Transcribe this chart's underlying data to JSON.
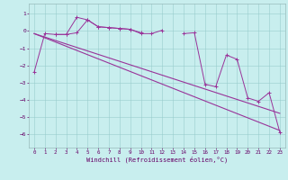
{
  "xlabel": "Windchill (Refroidissement éolien,°C)",
  "bg_color": "#c8eeee",
  "line_color": "#993399",
  "grid_color": "#99cccc",
  "xlim": [
    -0.5,
    23.5
  ],
  "ylim": [
    -6.8,
    1.6
  ],
  "yticks": [
    1,
    0,
    -1,
    -2,
    -3,
    -4,
    -5,
    -6
  ],
  "xticks": [
    0,
    1,
    2,
    3,
    4,
    5,
    6,
    7,
    8,
    9,
    10,
    11,
    12,
    13,
    14,
    15,
    16,
    17,
    18,
    19,
    20,
    21,
    22,
    23
  ],
  "hours": [
    0,
    1,
    2,
    3,
    4,
    5,
    6,
    7,
    8,
    9,
    10,
    11,
    12,
    13,
    14,
    15,
    16,
    17,
    18,
    19,
    20,
    21,
    22,
    23
  ],
  "line_jagged": [
    -2.4,
    -0.15,
    -0.2,
    -0.2,
    -0.1,
    0.65,
    0.25,
    0.2,
    0.15,
    0.1,
    -0.15,
    -0.15,
    0.05,
    null,
    -0.15,
    -0.1,
    -3.1,
    -3.25,
    -1.4,
    -1.65,
    -3.9,
    -4.1,
    -3.6,
    -5.9
  ],
  "line_short": [
    null,
    null,
    -0.2,
    -0.2,
    0.8,
    0.65,
    0.25,
    0.2,
    0.15,
    0.1,
    -0.1,
    null,
    null,
    null,
    null,
    null,
    null,
    null,
    null,
    null,
    null,
    null,
    null,
    null
  ],
  "trend1_x": [
    0,
    23
  ],
  "trend1_y": [
    -0.15,
    -5.8
  ],
  "trend2_x": [
    0,
    23
  ],
  "trend2_y": [
    -0.15,
    -4.8
  ]
}
